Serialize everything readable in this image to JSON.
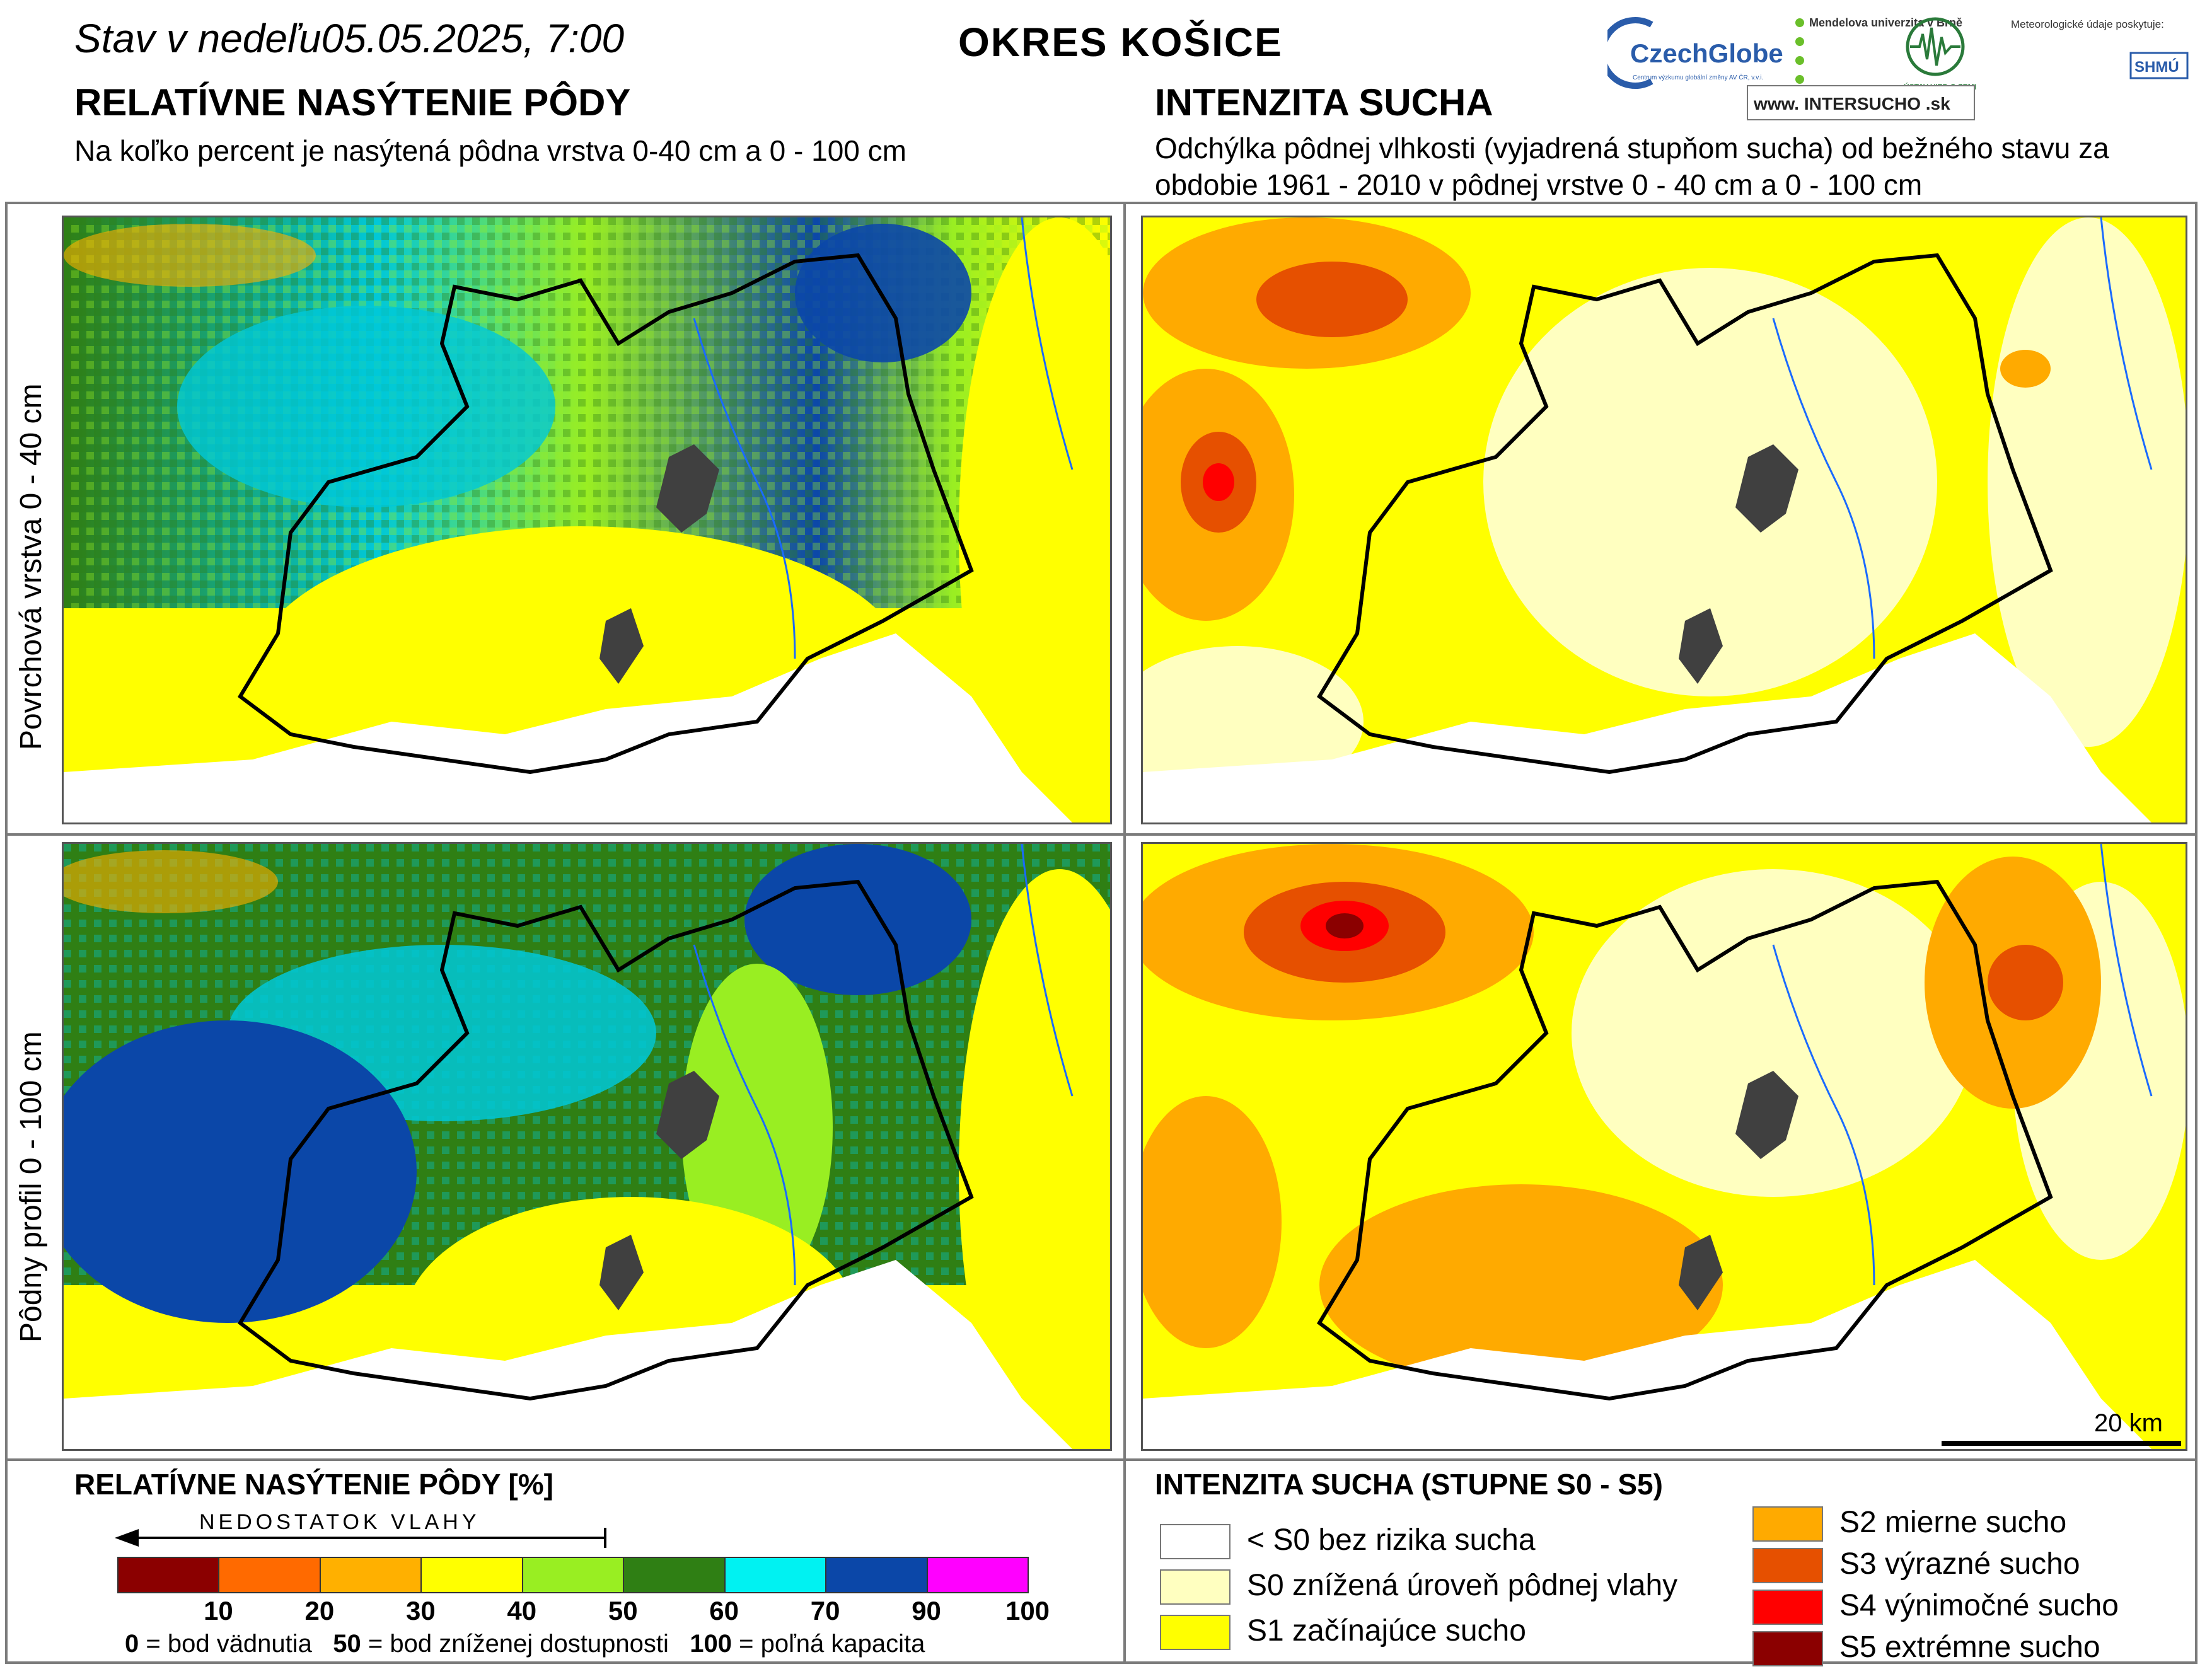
{
  "header": {
    "date_line": "Stav v nedeľu05.05.2025, 7:00",
    "district": "OKRES KOŠICE",
    "left_title": "RELATÍVNE NASÝTENIE PÔDY",
    "left_subtitle": "Na koľko percent je nasýtená pôdna vrstva 0-40 cm a 0 - 100 cm",
    "right_title": "INTENZITA SUCHA",
    "right_subtitle": "Odchýlka pôdnej vlhkosti (vyjadrená stupňom sucha) od bežného stavu za obdobie 1961 - 2010 v pôdnej vrstve 0 - 40 cm a 0 - 100 cm"
  },
  "logos": {
    "czechglobe_name": "CzechGlobe",
    "czechglobe_caption": "Centrum výzkumu globální změny AV ČR, v.v.i.",
    "mendel": "Mendelova univerzita v Brně",
    "ustav": "ÚSTAV VIED O ZEMI",
    "meteo_note": "Meteorologické údaje poskytuje:",
    "shmu": "SHMÚ",
    "intersucho": "www. INTERSUCHO .sk"
  },
  "rows": {
    "top_label": "Povrchová vrstva 0 - 40 cm",
    "bottom_label": "Pôdny profil 0 - 100 cm"
  },
  "scale": {
    "label": "20 km"
  },
  "saturation_legend": {
    "title": "RELATÍVNE NASÝTENIE PÔDY [%]",
    "arrow_label": "NEDOSTATOK VLAHY",
    "classes": [
      {
        "from": 0,
        "to": 10,
        "color": "#8b0000"
      },
      {
        "from": 10,
        "to": 20,
        "color": "#ff6a00"
      },
      {
        "from": 20,
        "to": 30,
        "color": "#ffb000"
      },
      {
        "from": 30,
        "to": 40,
        "color": "#ffff00"
      },
      {
        "from": 40,
        "to": 50,
        "color": "#99ee22"
      },
      {
        "from": 50,
        "to": 60,
        "color": "#2f7f14"
      },
      {
        "from": 60,
        "to": 70,
        "color": "#00f2f2"
      },
      {
        "from": 70,
        "to": 90,
        "color": "#0b47a8"
      },
      {
        "from": 90,
        "to": 100,
        "color": "#ff00ff"
      }
    ],
    "ticks": [
      "10",
      "20",
      "30",
      "40",
      "50",
      "60",
      "70",
      "90",
      "100"
    ],
    "note_0_num": "0",
    "note_0_text": " = bod vädnutia",
    "note_50_num": "50",
    "note_50_text": " = bod zníženej dostupnosti",
    "note_100_num": "100",
    "note_100_text": " = poľná kapacita"
  },
  "drought_legend": {
    "title": "INTENZITA SUCHA (STUPNE S0 - S5)",
    "items": [
      {
        "label": "< S0 bez rizika sucha",
        "color": "#ffffff"
      },
      {
        "label": "S0 znížená úroveň pôdnej vlahy",
        "color": "#ffffc0"
      },
      {
        "label": "S1 začínajúce sucho",
        "color": "#ffff00"
      },
      {
        "label": "S2 mierne sucho",
        "color": "#ffaa00"
      },
      {
        "label": "S3 výrazné sucho",
        "color": "#e65000"
      },
      {
        "label": "S4 výnimočné sucho",
        "color": "#ff0000"
      },
      {
        "label": "S5 extrémne sucho",
        "color": "#8b0000"
      }
    ]
  }
}
